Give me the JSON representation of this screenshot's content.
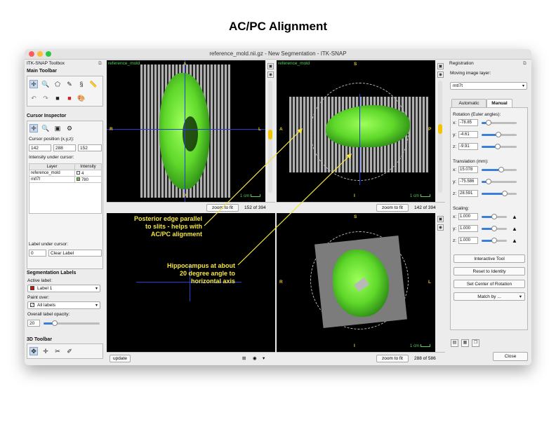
{
  "slide": {
    "title": "AC/PC Alignment"
  },
  "window": {
    "title": "reference_mold.nii.gz - New Segmentation - ITK-SNAP"
  },
  "left_panel": {
    "title": "ITK-SNAP Toolbox",
    "main_toolbar_label": "Main Toolbar",
    "cursor_inspector_label": "Cursor Inspector",
    "cursor_position_label": "Cursor position (x,y,z):",
    "cursor_position": [
      "142",
      "288",
      "152"
    ],
    "intensity_label": "Intensity under cursor:",
    "intensity_table": {
      "headers": [
        "Layer",
        "Intensity"
      ],
      "rows": [
        {
          "layer": "reference_mold",
          "intensity": "4",
          "color": "#ffffff"
        },
        {
          "layer": "mtl7t",
          "intensity": "780",
          "color": "#66cc33"
        }
      ]
    },
    "label_under_cursor_label": "Label under cursor:",
    "label_under_cursor_value": "0",
    "label_under_cursor_name": "Clear Label",
    "seg_labels_label": "Segmentation Labels",
    "active_label_label": "Active label:",
    "active_label_value": "Label 1",
    "active_label_color": "#cc1111",
    "paint_over_label": "Paint over:",
    "paint_over_value": "All labels",
    "opacity_label": "Overall label opacity:",
    "opacity_value": "20",
    "opacity_fraction": 0.2,
    "toolbar3d_label": "3D Toolbar"
  },
  "viewports": {
    "top_left": {
      "layer": "reference_mold",
      "axes": {
        "top": "A",
        "left": "R",
        "right": "L",
        "bottom": "P"
      },
      "scale": "1 cm",
      "zoom_button": "zoom to fit",
      "slice": "152 of 394"
    },
    "top_right": {
      "layer": "reference_mold",
      "axes": {
        "top": "S",
        "left": "A",
        "right": "P",
        "bottom": "I"
      },
      "scale": "1 cm",
      "zoom_button": "zoom to fit",
      "slice": "142 of 394"
    },
    "bottom_right": {
      "axes": {
        "top": "S",
        "left": "R",
        "right": "L",
        "bottom": "I"
      },
      "scale": "1 cm",
      "zoom_button": "zoom to fit",
      "slice": "288 of 586"
    },
    "bottom_left": {
      "update_button": "update"
    }
  },
  "annotations": [
    "Posterior edge parallel\nto slits - helps with\nAC/PC alignment",
    "Hippocampus at about\n20 degree angle to\nhorizontal axis"
  ],
  "right_panel": {
    "title": "Registration",
    "moving_layer_label": "Moving image layer:",
    "moving_layer_value": "mtl7t",
    "tabs": [
      "Automatic",
      "Manual"
    ],
    "active_tab": "Manual",
    "rotation_label": "Rotation (Euler angles):",
    "rotation": [
      {
        "axis": "x:",
        "value": "-78.85",
        "level": 0.2
      },
      {
        "axis": "y:",
        "value": "-4.61",
        "level": 0.47
      },
      {
        "axis": "z:",
        "value": "-9.91",
        "level": 0.45
      }
    ],
    "translation_label": "Translation (mm):",
    "translation": [
      {
        "axis": "x:",
        "value": "15.078",
        "level": 0.55
      },
      {
        "axis": "y:",
        "value": "-75.586",
        "level": 0.2
      },
      {
        "axis": "z:",
        "value": "28.591",
        "level": 0.65
      }
    ],
    "scaling_label": "Scaling:",
    "scaling": [
      {
        "axis": "x:",
        "value": "1.000",
        "level": 0.5
      },
      {
        "axis": "y:",
        "value": "1.000",
        "level": 0.5
      },
      {
        "axis": "z:",
        "value": "1.000",
        "level": 0.5
      }
    ],
    "buttons": {
      "interactive_tool": "Interactive Tool",
      "reset_identity": "Reset to Identity",
      "set_center": "Set Center of Rotation",
      "match_by": "Match by ...",
      "close": "Close"
    }
  },
  "colors": {
    "annotation": "#f5e63c",
    "accent": "#3c7fd9",
    "overlay_green": "#55d255",
    "axis_yellow": "#e4c61c"
  }
}
